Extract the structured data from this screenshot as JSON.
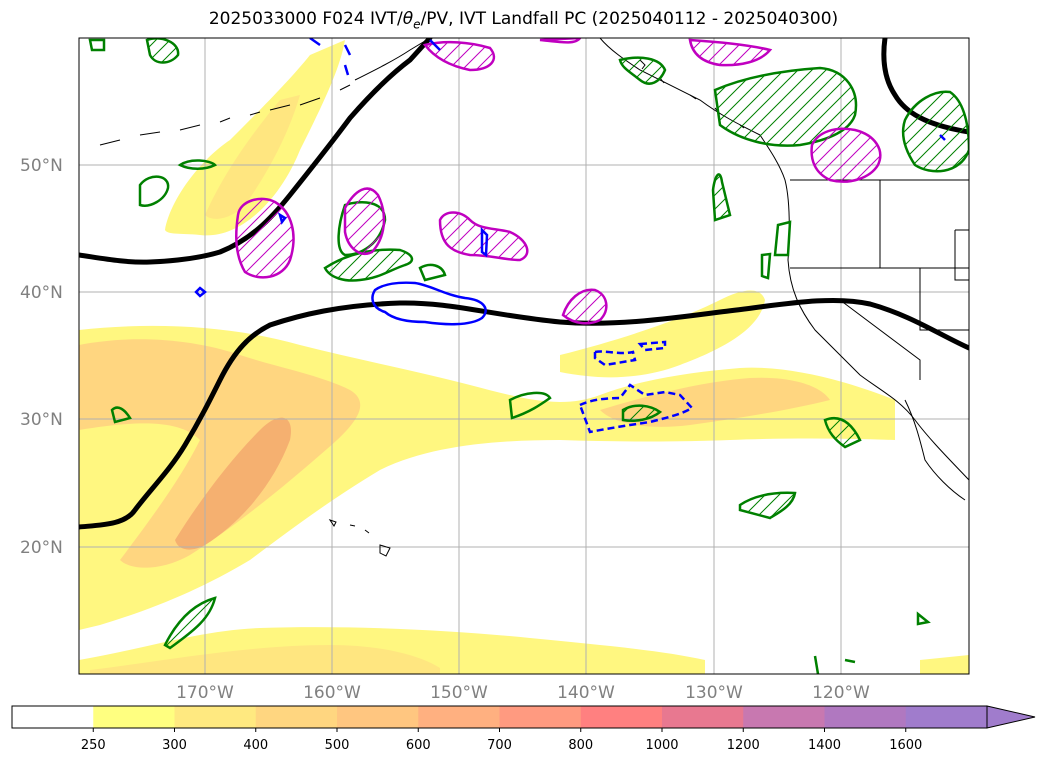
{
  "title": "2025033000 F024 IVT/θe/PV, IVT Landfall PC (2025040112 - 2025040300)",
  "title_parts": {
    "prefix": "2025033000 F024 IVT/",
    "theta": "θ",
    "sub": "e",
    "suffix": "/PV, IVT Landfall PC (2025040112 - 2025040300)"
  },
  "latitude_labels": [
    "50°N",
    "40°N",
    "30°N",
    "20°N"
  ],
  "longitude_labels": [
    "170°W",
    "160°W",
    "150°W",
    "140°W",
    "130°W",
    "120°W"
  ],
  "colorbar": {
    "ticks": [
      "250",
      "300",
      "400",
      "500",
      "600",
      "700",
      "800",
      "1000",
      "1200",
      "1400",
      "1600"
    ],
    "colors": [
      "#ffffff",
      "#ffff80",
      "#ffe980",
      "#ffd680",
      "#ffc680",
      "#ffb080",
      "#ff9a80",
      "#ff8080",
      "#e87890",
      "#c878b0",
      "#b078c0",
      "#a07ccc"
    ]
  },
  "colors": {
    "ivt_yellow": "#fff780",
    "ivt_orange": "#ffd680",
    "ivt_deep": "#f0a070",
    "pv_contour": "#000000",
    "green_contour": "#008000",
    "magenta_contour": "#c000c0",
    "blue_contour": "#0000ff"
  }
}
